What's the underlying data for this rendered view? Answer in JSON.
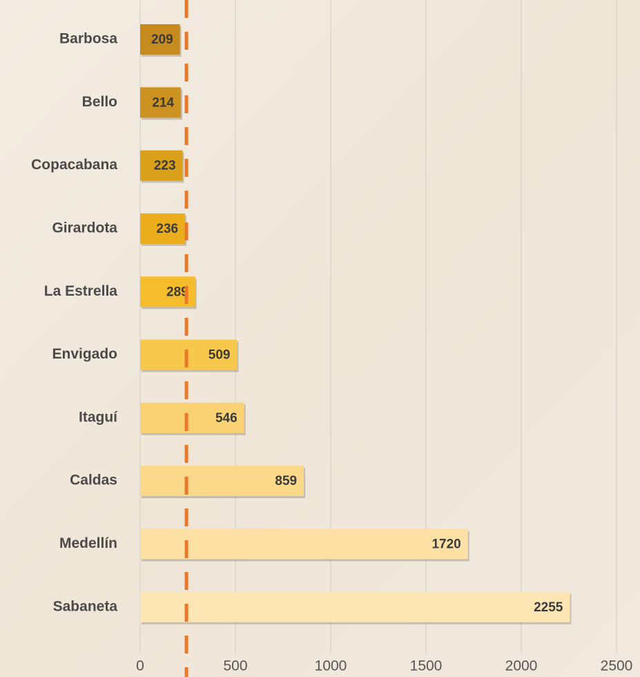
{
  "chart_data": {
    "type": "barh",
    "categories": [
      "Barbosa",
      "Bello",
      "Copacabana",
      "Girardota",
      "La Estrella",
      "Envigado",
      "Itaguí",
      "Caldas",
      "Medellín",
      "Sabaneta"
    ],
    "values": [
      209,
      214,
      223,
      236,
      289,
      509,
      546,
      859,
      1720,
      2255
    ],
    "colors": [
      "#c58b1e",
      "#cd9320",
      "#dba01a",
      "#ecad1c",
      "#f5bc2c",
      "#f8c84c",
      "#fad273",
      "#fbd98b",
      "#fde1a4",
      "#fde6b4"
    ],
    "xlim": [
      0,
      2500
    ],
    "xticks": [
      0,
      500,
      1000,
      1500,
      2000,
      2500
    ],
    "grid": true,
    "reference_line": {
      "value": 243,
      "color": "#e8782a"
    }
  }
}
